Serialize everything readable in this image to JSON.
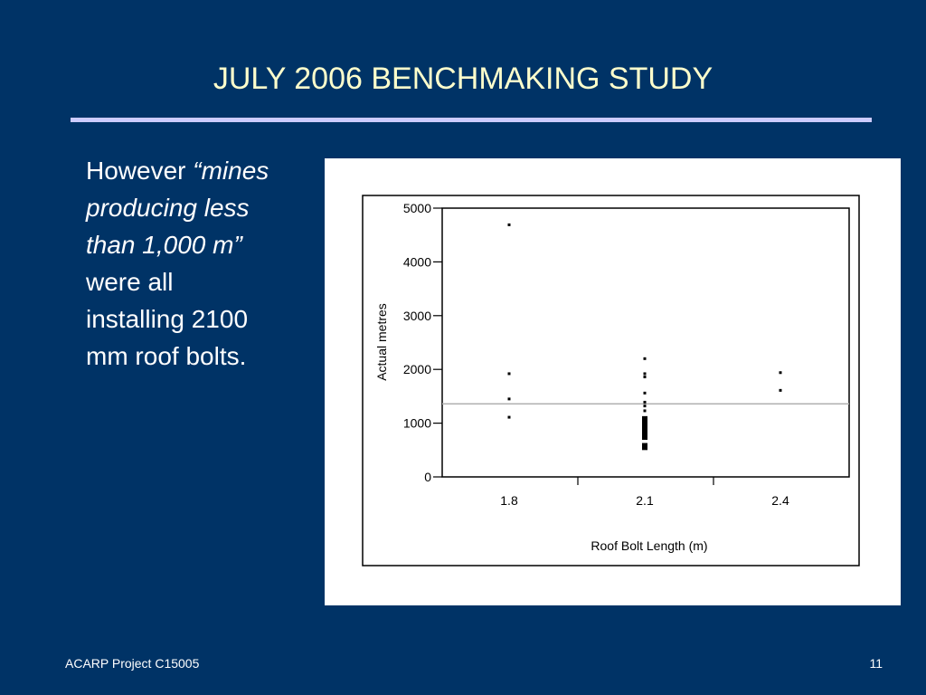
{
  "slide": {
    "title": "JULY 2006 BENCHMAKING STUDY",
    "body": {
      "lead": "However ",
      "quote_lines": [
        "“mines",
        "producing less",
        "than 1,000 m”"
      ],
      "rest_lines": [
        "were all",
        "installing 2100",
        "mm roof bolts."
      ]
    },
    "footer_left": "ACARP Project C15005",
    "footer_right": "11"
  },
  "chart_data": {
    "type": "scatter",
    "title": "",
    "xlabel": "Roof Bolt Length (m)",
    "ylabel": "Actual metres",
    "categories": [
      "1.8",
      "2.1",
      "2.4"
    ],
    "ylim": [
      0,
      5000
    ],
    "yticks": [
      0,
      1000,
      2000,
      3000,
      4000,
      5000
    ],
    "grid": false,
    "reference_line": {
      "y": 1360,
      "color": "#b0b0b0"
    },
    "colors": {
      "points": "#000000",
      "axis": "#000000"
    },
    "points": [
      {
        "x": "1.8",
        "y": 4690
      },
      {
        "x": "1.8",
        "y": 1920
      },
      {
        "x": "1.8",
        "y": 1450
      },
      {
        "x": "1.8",
        "y": 1110
      },
      {
        "x": "2.1",
        "y": 2200
      },
      {
        "x": "2.1",
        "y": 1920
      },
      {
        "x": "2.1",
        "y": 1860
      },
      {
        "x": "2.1",
        "y": 1560
      },
      {
        "x": "2.1",
        "y": 1390
      },
      {
        "x": "2.1",
        "y": 1320
      },
      {
        "x": "2.1",
        "y": 1230
      },
      {
        "x": "2.1",
        "y": 1080
      },
      {
        "x": "2.1",
        "y": 1020
      },
      {
        "x": "2.1",
        "y": 980
      },
      {
        "x": "2.1",
        "y": 940
      },
      {
        "x": "2.1",
        "y": 900
      },
      {
        "x": "2.1",
        "y": 860
      },
      {
        "x": "2.1",
        "y": 820
      },
      {
        "x": "2.1",
        "y": 780
      },
      {
        "x": "2.1",
        "y": 740
      },
      {
        "x": "2.1",
        "y": 580
      },
      {
        "x": "2.1",
        "y": 550
      },
      {
        "x": "2.4",
        "y": 1940
      },
      {
        "x": "2.4",
        "y": 1610
      }
    ]
  }
}
